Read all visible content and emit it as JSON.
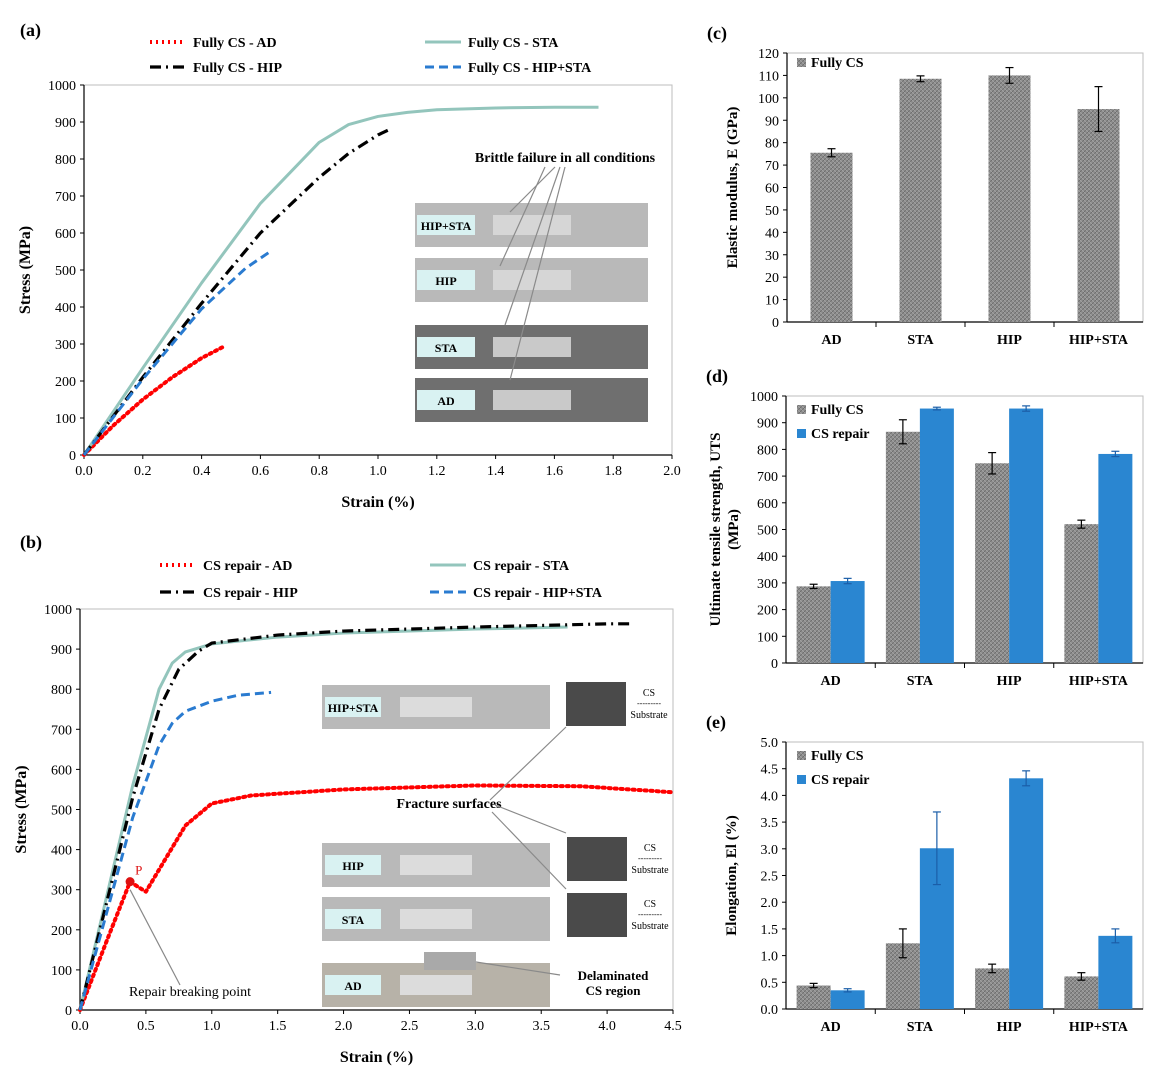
{
  "colors": {
    "ad": "#ff0000",
    "sta": "#93c5bc",
    "hip": "#000000",
    "hipsta": "#2a7bd0",
    "fully_bar": "#8c8c8c",
    "repair_bar": "#2a86d1",
    "marker": "#d11",
    "photo_bg": "#b9b9b9"
  },
  "chart_data": [
    {
      "id": "a",
      "type": "line",
      "panel_label": "(a)",
      "xlabel": "Strain (%)",
      "ylabel": "Stress (MPa)",
      "xlim": [
        0,
        2.0
      ],
      "ylim": [
        0,
        1000
      ],
      "xticks": [
        "0.0",
        "0.2",
        "0.4",
        "0.6",
        "0.8",
        "1.0",
        "1.2",
        "1.4",
        "1.6",
        "1.8",
        "2.0"
      ],
      "yticks": [
        "0",
        "100",
        "200",
        "300",
        "400",
        "500",
        "600",
        "700",
        "800",
        "900",
        "1000"
      ],
      "series": [
        {
          "name": "Fully CS - AD",
          "key": "ad",
          "style": "dotted",
          "x": [
            0,
            0.1,
            0.2,
            0.3,
            0.4,
            0.48
          ],
          "y": [
            0,
            80,
            150,
            210,
            262,
            295
          ]
        },
        {
          "name": "Fully CS - STA",
          "key": "sta",
          "style": "solid",
          "x": [
            0,
            0.2,
            0.4,
            0.6,
            0.8,
            0.9,
            1.0,
            1.1,
            1.2,
            1.4,
            1.6,
            1.75
          ],
          "y": [
            0,
            235,
            465,
            680,
            845,
            893,
            915,
            926,
            933,
            938,
            940,
            940
          ]
        },
        {
          "name": "Fully CS - HIP",
          "key": "hip",
          "style": "dashdot",
          "x": [
            0,
            0.2,
            0.4,
            0.6,
            0.8,
            0.9,
            1.0,
            1.04
          ],
          "y": [
            0,
            210,
            410,
            600,
            750,
            815,
            865,
            880
          ]
        },
        {
          "name": "Fully CS - HIP+STA",
          "key": "hipsta",
          "style": "dashed",
          "x": [
            0,
            0.2,
            0.4,
            0.55,
            0.63
          ],
          "y": [
            0,
            205,
            395,
            505,
            548
          ]
        }
      ],
      "annotations": {
        "note": "Brittle failure in all conditions",
        "photos": [
          "HIP+STA",
          "HIP",
          "STA",
          "AD"
        ]
      }
    },
    {
      "id": "b",
      "type": "line",
      "panel_label": "(b)",
      "xlabel": "Strain (%)",
      "ylabel": "Stress (MPa)",
      "xlim": [
        0,
        4.5
      ],
      "ylim": [
        0,
        1000
      ],
      "xticks": [
        "0.0",
        "0.5",
        "1.0",
        "1.5",
        "2.0",
        "2.5",
        "3.0",
        "3.5",
        "4.0",
        "4.5"
      ],
      "yticks": [
        "0",
        "100",
        "200",
        "300",
        "400",
        "500",
        "600",
        "700",
        "800",
        "900",
        "1000"
      ],
      "series": [
        {
          "name": "CS repair - AD",
          "key": "ad",
          "style": "dotted",
          "x": [
            0,
            0.2,
            0.38,
            0.45,
            0.5,
            0.6,
            0.8,
            1.0,
            1.3,
            2.0,
            3.0,
            3.8,
            4.5
          ],
          "y": [
            0,
            170,
            320,
            305,
            295,
            350,
            460,
            515,
            535,
            550,
            560,
            558,
            543
          ]
        },
        {
          "name": "CS repair - STA",
          "key": "sta",
          "style": "solid",
          "x": [
            0,
            0.2,
            0.4,
            0.6,
            0.7,
            0.8,
            1.0,
            1.5,
            2.0,
            3.0,
            3.7
          ],
          "y": [
            0,
            280,
            560,
            800,
            865,
            893,
            913,
            930,
            940,
            950,
            955
          ]
        },
        {
          "name": "CS repair - HIP",
          "key": "hip",
          "style": "dashdot",
          "x": [
            0,
            0.2,
            0.4,
            0.6,
            0.75,
            0.9,
            1.0,
            1.5,
            2.0,
            3.0,
            4.0,
            4.2
          ],
          "y": [
            0,
            265,
            530,
            750,
            850,
            895,
            915,
            935,
            945,
            955,
            963,
            963
          ]
        },
        {
          "name": "CS repair - HIP+STA",
          "key": "hipsta",
          "style": "dashed",
          "x": [
            0,
            0.2,
            0.4,
            0.6,
            0.7,
            0.8,
            1.0,
            1.2,
            1.45
          ],
          "y": [
            0,
            240,
            480,
            660,
            715,
            745,
            770,
            785,
            792
          ]
        }
      ],
      "annotations": {
        "marker_label": "P",
        "repair_point": "Repair breaking point",
        "fracture": "Fracture surfaces",
        "delaminated": "Delaminated CS region",
        "photos": [
          "HIP+STA",
          "HIP",
          "STA",
          "AD"
        ],
        "cs": "CS",
        "dashes": "---------",
        "substrate": "Substrate"
      }
    },
    {
      "id": "c",
      "type": "bar",
      "panel_label": "(c)",
      "ylabel": "Elastic modulus, E (GPa)",
      "categories": [
        "AD",
        "STA",
        "HIP",
        "HIP+STA"
      ],
      "ylim": [
        0,
        120
      ],
      "yticks": [
        "0",
        "10",
        "20",
        "30",
        "40",
        "50",
        "60",
        "70",
        "80",
        "90",
        "100",
        "110",
        "120"
      ],
      "series": [
        {
          "name": "Fully CS",
          "key": "fully",
          "values": [
            75.5,
            108.5,
            110,
            95
          ],
          "errors": [
            1.8,
            1.3,
            3.5,
            10
          ]
        }
      ]
    },
    {
      "id": "d",
      "type": "bar",
      "panel_label": "(d)",
      "ylabel": "Ultimate tensile strength, UTS (MPa)",
      "categories": [
        "AD",
        "STA",
        "HIP",
        "HIP+STA"
      ],
      "ylim": [
        0,
        1000
      ],
      "yticks": [
        "0",
        "100",
        "200",
        "300",
        "400",
        "500",
        "600",
        "700",
        "800",
        "900",
        "1000"
      ],
      "series": [
        {
          "name": "Fully CS",
          "key": "fully",
          "values": [
            287,
            866,
            748,
            520
          ],
          "errors": [
            8,
            45,
            40,
            15
          ]
        },
        {
          "name": "CS repair",
          "key": "repair",
          "values": [
            307,
            953,
            953,
            783
          ],
          "errors": [
            10,
            5,
            10,
            10
          ]
        }
      ]
    },
    {
      "id": "e",
      "type": "bar",
      "panel_label": "(e)",
      "ylabel": "Elongation, El (%)",
      "categories": [
        "AD",
        "STA",
        "HIP",
        "HIP+STA"
      ],
      "ylim": [
        0,
        5.0
      ],
      "yticks": [
        "0.0",
        "0.5",
        "1.0",
        "1.5",
        "2.0",
        "2.5",
        "3.0",
        "3.5",
        "4.0",
        "4.5",
        "5.0"
      ],
      "series": [
        {
          "name": "Fully CS",
          "key": "fully",
          "values": [
            0.44,
            1.23,
            0.76,
            0.61
          ],
          "errors": [
            0.04,
            0.27,
            0.08,
            0.07
          ]
        },
        {
          "name": "CS repair",
          "key": "repair",
          "values": [
            0.35,
            3.01,
            4.32,
            1.37
          ],
          "errors": [
            0.03,
            0.68,
            0.14,
            0.13
          ]
        }
      ]
    }
  ]
}
